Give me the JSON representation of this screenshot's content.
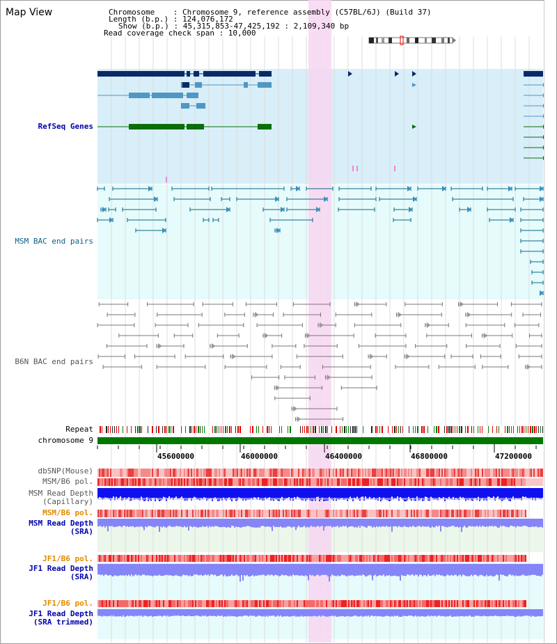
{
  "title": "Map View",
  "header": {
    "line1": "Chromosome    : Chromosome 9, reference assembly (C57BL/6J) (Build 37)",
    "line2": "Length (b.p.) : 124,076,172",
    "line3": "Show (b.p.) : 45,315,853-47,425,192 : 2,109,340 bp",
    "line4": "Read coverage check span : 10,000"
  },
  "tracks": {
    "refseq": "RefSeq Genes",
    "msm_bac": "MSM BAC end pairs",
    "b6n_bac": "B6N BAC end pairs",
    "repeat": "Repeat",
    "chromosome": "chromosome 9",
    "dbsnp": "dbSNP(Mouse)",
    "msm_b6_pol_1": "MSM/B6 pol.",
    "msm_depth_cap_1": "MSM Read Depth",
    "msm_depth_cap_2": "(Capillary)",
    "msm_b6_pol_2": "MSM/B6 pol.",
    "msm_depth_sra_1": "MSM Read Depth",
    "msm_depth_sra_2": "(SRA)",
    "jf1_b6_pol_1": "JF1/B6 pol.",
    "jf1_depth_sra_1": "JF1 Read Depth",
    "jf1_depth_sra_2": "(SRA)",
    "jf1_b6_pol_2": "JF1/B6 pol.",
    "jf1_depth_trim_1": "JF1 Read Depth",
    "jf1_depth_trim_2": "(SRA trimmed)"
  },
  "ruler": {
    "ticks": [
      "45600000",
      "46000000",
      "46400000",
      "46800000",
      "47200000"
    ]
  },
  "colors": {
    "refseq_bg": "#d8eef8",
    "msm_bg": "#e6fbfb",
    "highlight": "#f7d6f1",
    "gene_dark": "#0a2a66",
    "gene_mid": "#4f97c4",
    "gene_green": "#0a6e0a",
    "chrom_green": "#007700",
    "depth_blue": "#1010ee",
    "depth_violet": "#8585f7"
  }
}
